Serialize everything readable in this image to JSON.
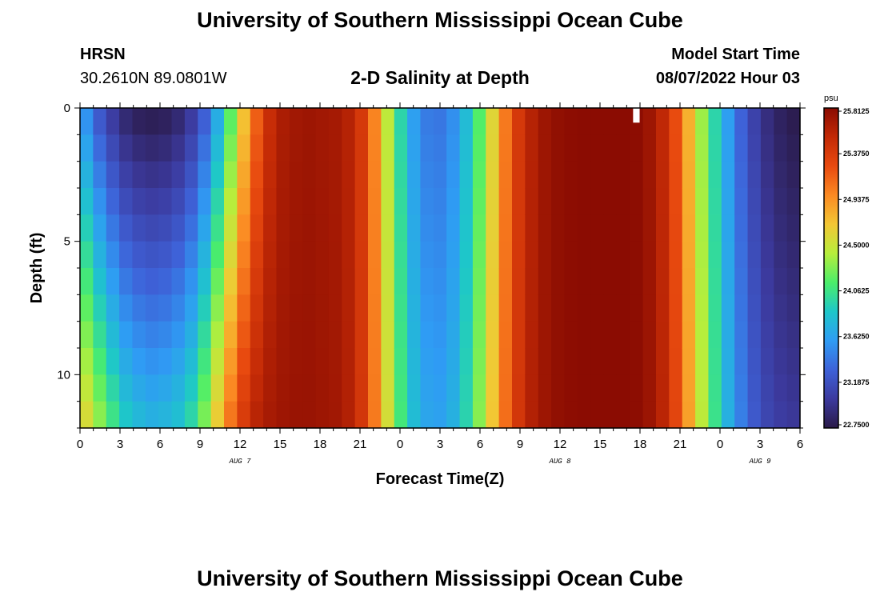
{
  "header": {
    "title": "University of Southern Mississippi Ocean Cube",
    "station": "HRSN",
    "coords": "30.2610N  89.0801W",
    "subtitle": "2-D Salinity at Depth",
    "model_start_label": "Model Start Time",
    "model_start_value": "08/07/2022 Hour 03"
  },
  "footer": {
    "title": "University of Southern Mississippi Ocean Cube"
  },
  "colors": {
    "scale": [
      "#2a1a48",
      "#3c3a9e",
      "#3e62d8",
      "#2f9cf4",
      "#1ec7c9",
      "#4bee6a",
      "#b7ee3c",
      "#f3c734",
      "#fb8a23",
      "#e84a0f",
      "#c32a06",
      "#8a0c02"
    ],
    "missing": "#ffffff"
  },
  "chart_data": {
    "type": "heatmap",
    "title": "2-D Salinity at Depth",
    "xlabel": "Forecast Time(Z)",
    "ylabel": "Depth (ft)",
    "x_range_hours": [
      0,
      54
    ],
    "x_step_hours": 1,
    "y_range_ft": [
      0,
      12
    ],
    "y_step_ft": 1,
    "x_tick_labels": [
      "0",
      "3",
      "6",
      "9",
      "12",
      "15",
      "18",
      "21",
      "0",
      "3",
      "6",
      "9",
      "12",
      "15",
      "18",
      "21",
      "0",
      "3",
      "6"
    ],
    "x_tick_hours": [
      0,
      3,
      6,
      9,
      12,
      15,
      18,
      21,
      24,
      27,
      30,
      33,
      36,
      39,
      42,
      45,
      48,
      51,
      54
    ],
    "date_labels": [
      {
        "text": "AUG 7",
        "hour": 12
      },
      {
        "text": "AUG 8",
        "hour": 36
      },
      {
        "text": "AUG 9",
        "hour": 51
      }
    ],
    "y_tick_labels": [
      "0",
      "5",
      "10"
    ],
    "y_tick_values": [
      0,
      5,
      10
    ],
    "colorbar": {
      "unit": "psu",
      "min": 22.75,
      "max": 25.8125,
      "labels": [
        "25.8125",
        "25.3750",
        "24.9375",
        "24.5000",
        "24.0625",
        "23.6250",
        "23.1875",
        "22.7500"
      ]
    },
    "surface_salinity_psu": [
      23.5,
      23.2,
      23.0,
      22.85,
      22.78,
      22.76,
      22.78,
      22.85,
      23.0,
      23.25,
      23.65,
      24.15,
      24.7,
      25.15,
      25.5,
      25.65,
      25.7,
      25.72,
      25.7,
      25.68,
      25.6,
      25.4,
      25.0,
      24.45,
      23.95,
      23.6,
      23.42,
      23.4,
      23.52,
      23.78,
      24.15,
      24.6,
      25.05,
      25.4,
      25.6,
      25.72,
      25.78,
      25.8,
      25.81,
      25.81,
      25.81,
      25.81,
      25.8,
      25.72,
      25.55,
      25.25,
      24.8,
      24.35,
      23.95,
      23.6,
      23.3,
      23.08,
      22.92,
      22.82,
      22.77
    ],
    "bottom_salinity_psu": [
      24.6,
      24.35,
      24.1,
      23.9,
      23.8,
      23.75,
      23.78,
      23.85,
      24.0,
      24.3,
      24.7,
      25.1,
      25.4,
      25.6,
      25.68,
      25.72,
      25.74,
      25.74,
      25.72,
      25.7,
      25.62,
      25.42,
      25.05,
      24.55,
      24.1,
      23.8,
      23.65,
      23.63,
      23.72,
      23.95,
      24.3,
      24.7,
      25.1,
      25.42,
      25.62,
      25.72,
      25.78,
      25.8,
      25.81,
      25.81,
      25.81,
      25.81,
      25.8,
      25.73,
      25.58,
      25.3,
      24.88,
      24.45,
      24.05,
      23.72,
      23.45,
      23.25,
      23.12,
      23.05,
      23.02
    ],
    "missing_cells": [
      {
        "hour": 42,
        "depth_ft": 0
      }
    ]
  }
}
